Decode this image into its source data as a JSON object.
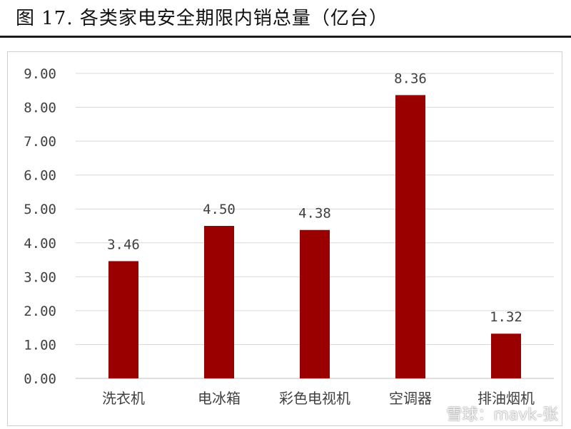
{
  "title": "图 17. 各类家电安全期限内销总量（亿台）",
  "colors": {
    "bar": "#9b0000",
    "grid": "#d9d9d9",
    "axis_text": "#404040"
  },
  "watermark": "雪球：mavk-张",
  "chart_data": {
    "type": "bar",
    "title": "各类家电安全期限内销总量（亿台）",
    "categories": [
      "洗衣机",
      "电冰箱",
      "彩色电视机",
      "空调器",
      "排油烟机"
    ],
    "values": [
      3.46,
      4.5,
      4.38,
      8.36,
      1.32
    ],
    "value_labels": [
      "3.46",
      "4.50",
      "4.38",
      "8.36",
      "1.32"
    ],
    "y_ticks": [
      "0.00",
      "1.00",
      "2.00",
      "3.00",
      "4.00",
      "5.00",
      "6.00",
      "7.00",
      "8.00",
      "9.00"
    ],
    "ylim": [
      0,
      9
    ],
    "grid": true,
    "legend": "none",
    "xlabel": "",
    "ylabel": ""
  }
}
